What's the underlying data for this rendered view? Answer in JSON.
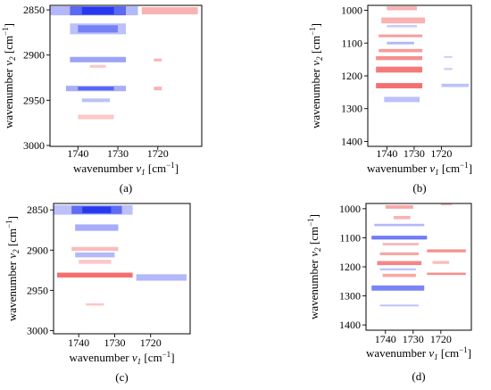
{
  "figure": {
    "panels": [
      "(a)",
      "(b)",
      "(c)",
      "(d)"
    ]
  },
  "colors": {
    "negative": "#2233ee",
    "positive": "#ee2222",
    "frame": "#000000"
  },
  "chart_data": [
    {
      "type": "heatmap",
      "panel_label": "(a)",
      "xlabel_main": "wavenumber ",
      "xlabel_sym": "v",
      "xlabel_sub": "1",
      "xlabel_unit": " [cm",
      "xlabel_sup": "−1",
      "xlabel_end": "]",
      "ylabel_main": "wavenumber ",
      "ylabel_sym": "v",
      "ylabel_sub": "2",
      "ylabel_unit": " [cm",
      "ylabel_sup": "−1",
      "ylabel_end": "]",
      "xlim": [
        1747,
        1709
      ],
      "ylim": [
        2845,
        3001
      ],
      "xticks": [
        "1740",
        "1730",
        "1720"
      ],
      "xtick_values": [
        1740,
        1730,
        1720
      ],
      "yticks": [
        "2850",
        "2900",
        "2950",
        "3000"
      ],
      "ytick_values": [
        2850,
        2900,
        2950,
        3000
      ],
      "cells": [
        {
          "x0": 1747,
          "x1": 1725,
          "y0": 2846,
          "y1": 2856,
          "sign": "neg",
          "a": 0.35
        },
        {
          "x0": 1742,
          "x1": 1728,
          "y0": 2846,
          "y1": 2856,
          "sign": "neg",
          "a": 0.6
        },
        {
          "x0": 1739,
          "x1": 1731,
          "y0": 2847,
          "y1": 2855,
          "sign": "neg",
          "a": 0.9
        },
        {
          "x0": 1724,
          "x1": 1710,
          "y0": 2847,
          "y1": 2855,
          "sign": "pos",
          "a": 0.35
        },
        {
          "x0": 1742,
          "x1": 1728,
          "y0": 2865,
          "y1": 2877,
          "sign": "neg",
          "a": 0.3
        },
        {
          "x0": 1740,
          "x1": 1730,
          "y0": 2867,
          "y1": 2875,
          "sign": "neg",
          "a": 0.45
        },
        {
          "x0": 1742,
          "x1": 1728,
          "y0": 2902,
          "y1": 2908,
          "sign": "neg",
          "a": 0.45
        },
        {
          "x0": 1737,
          "x1": 1733,
          "y0": 2911,
          "y1": 2914,
          "sign": "pos",
          "a": 0.25
        },
        {
          "x0": 1721,
          "x1": 1719,
          "y0": 2904,
          "y1": 2907,
          "sign": "pos",
          "a": 0.35
        },
        {
          "x0": 1743,
          "x1": 1728,
          "y0": 2934,
          "y1": 2940,
          "sign": "neg",
          "a": 0.4
        },
        {
          "x0": 1740,
          "x1": 1731,
          "y0": 2935,
          "y1": 2939,
          "sign": "neg",
          "a": 0.6
        },
        {
          "x0": 1721,
          "x1": 1719,
          "y0": 2935,
          "y1": 2939,
          "sign": "pos",
          "a": 0.35
        },
        {
          "x0": 1739,
          "x1": 1732,
          "y0": 2948,
          "y1": 2952,
          "sign": "neg",
          "a": 0.3
        },
        {
          "x0": 1740,
          "x1": 1731,
          "y0": 2966,
          "y1": 2971,
          "sign": "pos",
          "a": 0.25
        }
      ]
    },
    {
      "type": "heatmap",
      "panel_label": "(b)",
      "xlabel_main": "wavenumber ",
      "xlabel_sym": "v",
      "xlabel_sub": "1",
      "xlabel_unit": " [cm",
      "xlabel_sup": "−1",
      "xlabel_end": "]",
      "ylabel_main": "wavenumber ",
      "ylabel_sym": "v",
      "ylabel_sub": "2",
      "ylabel_unit": " [cm",
      "ylabel_sup": "−1",
      "ylabel_end": "]",
      "xlim": [
        1747,
        1709
      ],
      "ylim": [
        985,
        1415
      ],
      "xticks": [
        "1740",
        "1730",
        "1720"
      ],
      "xtick_values": [
        1740,
        1730,
        1720
      ],
      "yticks": [
        "1000",
        "1100",
        "1200",
        "1300",
        "1400"
      ],
      "ytick_values": [
        1000,
        1100,
        1200,
        1300,
        1400
      ],
      "cells": [
        {
          "x0": 1740,
          "x1": 1729,
          "y0": 988,
          "y1": 1000,
          "sign": "pos",
          "a": 0.35
        },
        {
          "x0": 1742,
          "x1": 1726,
          "y0": 1022,
          "y1": 1040,
          "sign": "pos",
          "a": 0.35
        },
        {
          "x0": 1740,
          "x1": 1729,
          "y0": 1045,
          "y1": 1052,
          "sign": "neg",
          "a": 0.25
        },
        {
          "x0": 1743,
          "x1": 1727,
          "y0": 1074,
          "y1": 1082,
          "sign": "pos",
          "a": 0.45
        },
        {
          "x0": 1740,
          "x1": 1730,
          "y0": 1096,
          "y1": 1104,
          "sign": "neg",
          "a": 0.35
        },
        {
          "x0": 1743,
          "x1": 1727,
          "y0": 1118,
          "y1": 1128,
          "sign": "pos",
          "a": 0.45
        },
        {
          "x0": 1744,
          "x1": 1727,
          "y0": 1140,
          "y1": 1152,
          "sign": "pos",
          "a": 0.5
        },
        {
          "x0": 1744,
          "x1": 1727,
          "y0": 1172,
          "y1": 1190,
          "sign": "pos",
          "a": 0.6
        },
        {
          "x0": 1744,
          "x1": 1727,
          "y0": 1222,
          "y1": 1238,
          "sign": "pos",
          "a": 0.65
        },
        {
          "x0": 1741,
          "x1": 1728,
          "y0": 1264,
          "y1": 1280,
          "sign": "neg",
          "a": 0.3
        },
        {
          "x0": 1720,
          "x1": 1710,
          "y0": 1224,
          "y1": 1234,
          "sign": "neg",
          "a": 0.3
        },
        {
          "x0": 1719,
          "x1": 1716,
          "y0": 1176,
          "y1": 1182,
          "sign": "neg",
          "a": 0.25
        },
        {
          "x0": 1719,
          "x1": 1716,
          "y0": 1140,
          "y1": 1145,
          "sign": "neg",
          "a": 0.25
        }
      ]
    },
    {
      "type": "heatmap",
      "panel_label": "(c)",
      "xlabel_main": "wavenumber ",
      "xlabel_sym": "v",
      "xlabel_sub": "1",
      "xlabel_unit": " [cm",
      "xlabel_sup": "−1",
      "xlabel_end": "]",
      "ylabel_main": "wavenumber ",
      "ylabel_sym": "v",
      "ylabel_sub": "2",
      "ylabel_unit": " [cm",
      "ylabel_sup": "−1",
      "ylabel_end": "]",
      "xlim": [
        1747,
        1709
      ],
      "ylim": [
        2842,
        3004
      ],
      "xticks": [
        "1740",
        "1730",
        "1720"
      ],
      "xtick_values": [
        1740,
        1730,
        1720
      ],
      "yticks": [
        "2850",
        "2900",
        "2950",
        "3000"
      ],
      "ytick_values": [
        2850,
        2900,
        2950,
        3000
      ],
      "cells": [
        {
          "x0": 1747,
          "x1": 1725,
          "y0": 2844,
          "y1": 2856,
          "sign": "neg",
          "a": 0.3
        },
        {
          "x0": 1742,
          "x1": 1728,
          "y0": 2845,
          "y1": 2855,
          "sign": "neg",
          "a": 0.6
        },
        {
          "x0": 1739,
          "x1": 1731,
          "y0": 2846,
          "y1": 2854,
          "sign": "neg",
          "a": 0.9
        },
        {
          "x0": 1741,
          "x1": 1729,
          "y0": 2868,
          "y1": 2876,
          "sign": "neg",
          "a": 0.4
        },
        {
          "x0": 1742,
          "x1": 1729,
          "y0": 2896,
          "y1": 2901,
          "sign": "pos",
          "a": 0.3
        },
        {
          "x0": 1741,
          "x1": 1730,
          "y0": 2903,
          "y1": 2909,
          "sign": "neg",
          "a": 0.35
        },
        {
          "x0": 1740,
          "x1": 1731,
          "y0": 2912,
          "y1": 2917,
          "sign": "pos",
          "a": 0.25
        },
        {
          "x0": 1746,
          "x1": 1725,
          "y0": 2928,
          "y1": 2934,
          "sign": "pos",
          "a": 0.65
        },
        {
          "x0": 1724,
          "x1": 1710,
          "y0": 2930,
          "y1": 2938,
          "sign": "neg",
          "a": 0.35
        },
        {
          "x0": 1738,
          "x1": 1733,
          "y0": 2966,
          "y1": 2969,
          "sign": "pos",
          "a": 0.25
        }
      ]
    },
    {
      "type": "heatmap",
      "panel_label": "(d)",
      "xlabel_main": "wavenumber ",
      "xlabel_sym": "v",
      "xlabel_sub": "1",
      "xlabel_unit": " [cm",
      "xlabel_sup": "−1",
      "xlabel_end": "]",
      "ylabel_main": "wavenumber ",
      "ylabel_sym": "v",
      "ylabel_sub": "2",
      "ylabel_unit": " [cm",
      "ylabel_sup": "−1",
      "ylabel_end": "]",
      "xlim": [
        1747,
        1709
      ],
      "ylim": [
        982,
        1418
      ],
      "xticks": [
        "1740",
        "1730",
        "1720"
      ],
      "xtick_values": [
        1740,
        1730,
        1720
      ],
      "yticks": [
        "1000",
        "1100",
        "1200",
        "1300",
        "1400"
      ],
      "ytick_values": [
        1000,
        1100,
        1200,
        1300,
        1400
      ],
      "cells": [
        {
          "x0": 1740,
          "x1": 1730,
          "y0": 988,
          "y1": 1000,
          "sign": "pos",
          "a": 0.4
        },
        {
          "x0": 1720,
          "x1": 1716,
          "y0": 984,
          "y1": 988,
          "sign": "pos",
          "a": 0.3
        },
        {
          "x0": 1737,
          "x1": 1731,
          "y0": 1025,
          "y1": 1036,
          "sign": "pos",
          "a": 0.35
        },
        {
          "x0": 1744,
          "x1": 1726,
          "y0": 1052,
          "y1": 1060,
          "sign": "neg",
          "a": 0.35
        },
        {
          "x0": 1745,
          "x1": 1725,
          "y0": 1093,
          "y1": 1106,
          "sign": "neg",
          "a": 0.65
        },
        {
          "x0": 1741,
          "x1": 1728,
          "y0": 1118,
          "y1": 1126,
          "sign": "pos",
          "a": 0.35
        },
        {
          "x0": 1742,
          "x1": 1728,
          "y0": 1150,
          "y1": 1160,
          "sign": "pos",
          "a": 0.4
        },
        {
          "x0": 1743,
          "x1": 1727,
          "y0": 1180,
          "y1": 1194,
          "sign": "pos",
          "a": 0.55
        },
        {
          "x0": 1742,
          "x1": 1729,
          "y0": 1205,
          "y1": 1212,
          "sign": "neg",
          "a": 0.3
        },
        {
          "x0": 1741,
          "x1": 1729,
          "y0": 1224,
          "y1": 1235,
          "sign": "pos",
          "a": 0.4
        },
        {
          "x0": 1745,
          "x1": 1726,
          "y0": 1264,
          "y1": 1282,
          "sign": "neg",
          "a": 0.6
        },
        {
          "x0": 1742,
          "x1": 1728,
          "y0": 1330,
          "y1": 1336,
          "sign": "neg",
          "a": 0.3
        },
        {
          "x0": 1725,
          "x1": 1711,
          "y0": 1140,
          "y1": 1150,
          "sign": "pos",
          "a": 0.5
        },
        {
          "x0": 1725,
          "x1": 1711,
          "y0": 1220,
          "y1": 1228,
          "sign": "pos",
          "a": 0.5
        },
        {
          "x0": 1723,
          "x1": 1717,
          "y0": 1180,
          "y1": 1190,
          "sign": "pos",
          "a": 0.3
        }
      ]
    }
  ]
}
